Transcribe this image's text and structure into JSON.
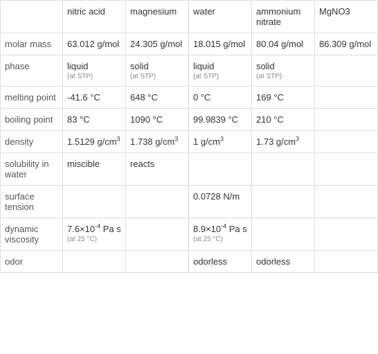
{
  "table": {
    "type": "table",
    "columns": [
      "",
      "nitric acid",
      "magnesium",
      "water",
      "ammonium nitrate",
      "MgNO3"
    ],
    "column_header_bg": "#ffffff",
    "border_color": "#dddddd",
    "text_color": "#333333",
    "note_color": "#888888",
    "font_size": 13,
    "note_font_size": 10,
    "rows": [
      {
        "label": "molar mass",
        "cells": [
          {
            "value": "63.012 g/mol"
          },
          {
            "value": "24.305 g/mol"
          },
          {
            "value": "18.015 g/mol"
          },
          {
            "value": "80.04 g/mol"
          },
          {
            "value": "86.309 g/mol"
          }
        ]
      },
      {
        "label": "phase",
        "cells": [
          {
            "value": "liquid",
            "note": "(at STP)"
          },
          {
            "value": "solid",
            "note": "(at STP)"
          },
          {
            "value": "liquid",
            "note": "(at STP)"
          },
          {
            "value": "solid",
            "note": "(at STP)"
          },
          {
            "value": ""
          }
        ]
      },
      {
        "label": "melting point",
        "cells": [
          {
            "value": "-41.6 °C"
          },
          {
            "value": "648 °C"
          },
          {
            "value": "0 °C"
          },
          {
            "value": "169 °C"
          },
          {
            "value": ""
          }
        ]
      },
      {
        "label": "boiling point",
        "cells": [
          {
            "value": "83 °C"
          },
          {
            "value": "1090 °C"
          },
          {
            "value": "99.9839 °C"
          },
          {
            "value": "210 °C"
          },
          {
            "value": ""
          }
        ]
      },
      {
        "label": "density",
        "cells": [
          {
            "value": "1.5129 g/cm",
            "sup": "3"
          },
          {
            "value": "1.738 g/cm",
            "sup": "3"
          },
          {
            "value": "1 g/cm",
            "sup": "3"
          },
          {
            "value": "1.73 g/cm",
            "sup": "3"
          },
          {
            "value": ""
          }
        ]
      },
      {
        "label": "solubility in water",
        "cells": [
          {
            "value": "miscible"
          },
          {
            "value": "reacts"
          },
          {
            "value": ""
          },
          {
            "value": ""
          },
          {
            "value": ""
          }
        ]
      },
      {
        "label": "surface tension",
        "cells": [
          {
            "value": ""
          },
          {
            "value": ""
          },
          {
            "value": "0.0728 N/m"
          },
          {
            "value": ""
          },
          {
            "value": ""
          }
        ]
      },
      {
        "label": "dynamic viscosity",
        "cells": [
          {
            "prefix": "7.6×10",
            "sup": "-4",
            "suffix": " Pa s",
            "note": "(at 25 °C)"
          },
          {
            "value": ""
          },
          {
            "prefix": "8.9×10",
            "sup": "-4",
            "suffix": " Pa s",
            "note": "(at 25 °C)"
          },
          {
            "value": ""
          },
          {
            "value": ""
          }
        ]
      },
      {
        "label": "odor",
        "cells": [
          {
            "value": ""
          },
          {
            "value": ""
          },
          {
            "value": "odorless"
          },
          {
            "value": "odorless"
          },
          {
            "value": ""
          }
        ]
      }
    ]
  }
}
